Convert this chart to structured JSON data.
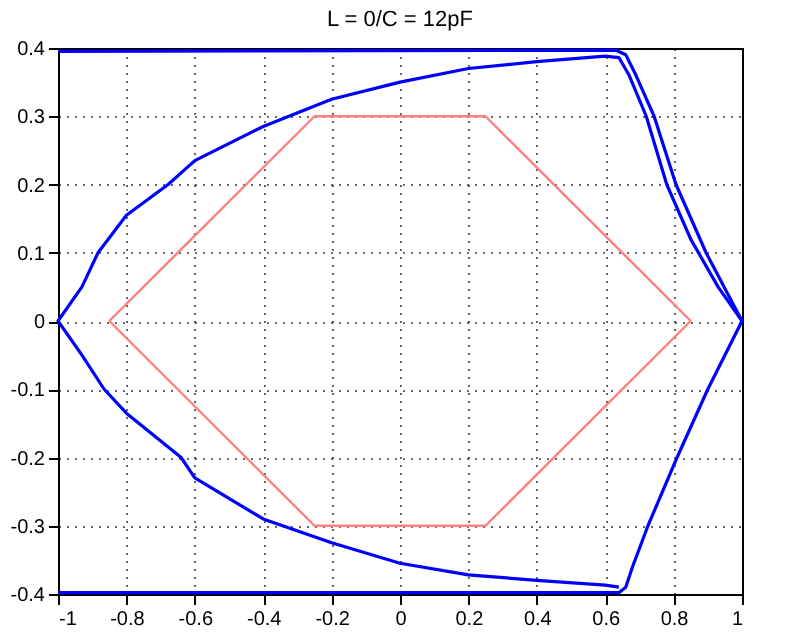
{
  "chart_data": {
    "type": "line",
    "title": "L = 0/C = 12pF",
    "xlim": [
      -1,
      1
    ],
    "xticks": [
      -1,
      -0.8,
      -0.6,
      -0.4,
      -0.2,
      0,
      0.2,
      0.4,
      0.6,
      0.8,
      1
    ],
    "ylim": [
      -0.4,
      0.4
    ],
    "yticks": [
      -0.4,
      -0.3,
      -0.2,
      -0.1,
      0,
      0.1,
      0.2,
      0.3,
      0.4
    ],
    "grid": true,
    "line_style": "solid",
    "series": [
      {
        "color": "#0000ff",
        "x": [
          -1,
          0.63,
          0.66,
          0.69,
          0.743,
          0.807,
          0.895,
          1,
          0.9,
          0.81,
          0.725,
          0.68,
          0.66,
          0.64,
          -1
        ],
        "values": [
          0.395,
          0.397,
          0.39,
          0.36,
          0.3,
          0.2,
          0.1,
          0,
          -0.1,
          -0.2,
          -0.3,
          -0.36,
          -0.39,
          -0.398,
          -0.398
        ]
      },
      {
        "color": "#0000ff",
        "x": [
          0.64,
          0.6,
          0.4,
          0.2,
          0,
          -0.2,
          -0.4,
          -0.6,
          -0.64,
          -0.8,
          -0.865,
          -0.93,
          -1,
          -0.93,
          -0.883,
          -0.8,
          -0.678,
          -0.6,
          -0.4,
          -0.2,
          0,
          0.2,
          0.4,
          0.6,
          0.64,
          0.67,
          0.72,
          0.78,
          0.85,
          0.93,
          1
        ],
        "values": [
          -0.39,
          -0.387,
          -0.38,
          -0.372,
          -0.355,
          -0.325,
          -0.29,
          -0.23,
          -0.2,
          -0.135,
          -0.1,
          -0.05,
          0,
          0.05,
          0.1,
          0.155,
          0.2,
          0.235,
          0.285,
          0.325,
          0.35,
          0.37,
          0.38,
          0.388,
          0.386,
          0.36,
          0.3,
          0.2,
          0.12,
          0.05,
          0
        ]
      },
      {
        "color": "#ff7f7f",
        "x": [
          -0.85,
          -0.25,
          0.25,
          0.85
        ],
        "values": [
          0,
          0.3,
          0.3,
          0
        ]
      },
      {
        "color": "#ff7f7f",
        "x": [
          0.85,
          0.25,
          -0.25,
          -0.85
        ],
        "values": [
          0,
          -0.3,
          -0.3,
          0
        ]
      }
    ]
  }
}
